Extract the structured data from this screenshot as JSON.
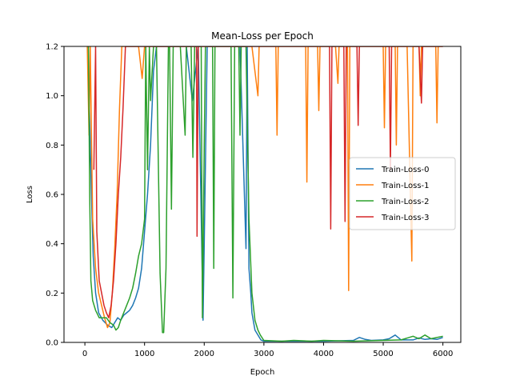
{
  "chart_data": {
    "type": "line",
    "title": "Mean-Loss per Epoch",
    "xlabel": "Epoch",
    "ylabel": "Loss",
    "xlim": [
      -350,
      6300
    ],
    "ylim": [
      0,
      1.2
    ],
    "xticks": [
      0,
      1000,
      2000,
      3000,
      4000,
      5000,
      6000
    ],
    "yticks": [
      0.0,
      0.2,
      0.4,
      0.6,
      0.8,
      1.0,
      1.2
    ],
    "xtick_labels": [
      "0",
      "1000",
      "2000",
      "3000",
      "4000",
      "5000",
      "6000"
    ],
    "ytick_labels": [
      "0.0",
      "0.2",
      "0.4",
      "0.6",
      "0.8",
      "1.0",
      "1.2"
    ],
    "grid": false,
    "legend_position": "center-right",
    "series": [
      {
        "name": "Train-Loss-0",
        "color": "#1f77b4",
        "points": [
          [
            50,
            1.2
          ],
          [
            80,
            0.9
          ],
          [
            110,
            0.6
          ],
          [
            140,
            0.35
          ],
          [
            180,
            0.2
          ],
          [
            230,
            0.12
          ],
          [
            300,
            0.09
          ],
          [
            380,
            0.07
          ],
          [
            450,
            0.06
          ],
          [
            500,
            0.08
          ],
          [
            550,
            0.1
          ],
          [
            600,
            0.09
          ],
          [
            650,
            0.11
          ],
          [
            700,
            0.12
          ],
          [
            750,
            0.13
          ],
          [
            800,
            0.15
          ],
          [
            850,
            0.18
          ],
          [
            900,
            0.22
          ],
          [
            950,
            0.3
          ],
          [
            1000,
            0.45
          ],
          [
            1050,
            0.6
          ],
          [
            1100,
            0.8
          ],
          [
            1150,
            1.1
          ],
          [
            1200,
            1.2
          ],
          [
            1300,
            1.2
          ],
          [
            1500,
            1.2
          ],
          [
            1700,
            1.2
          ],
          [
            1800,
            0.98
          ],
          [
            1900,
            1.2
          ],
          [
            1980,
            0.09
          ],
          [
            2000,
            0.4
          ],
          [
            2050,
            1.2
          ],
          [
            2200,
            1.2
          ],
          [
            2400,
            1.2
          ],
          [
            2600,
            1.2
          ],
          [
            2700,
            0.38
          ],
          [
            2720,
            1.2
          ],
          [
            2750,
            0.3
          ],
          [
            2780,
            0.2
          ],
          [
            2800,
            0.12
          ],
          [
            2850,
            0.05
          ],
          [
            2900,
            0.03
          ],
          [
            2950,
            0.01
          ],
          [
            3000,
            0.005
          ],
          [
            3500,
            0.005
          ],
          [
            4000,
            0.005
          ],
          [
            4500,
            0.008
          ],
          [
            4600,
            0.02
          ],
          [
            4700,
            0.012
          ],
          [
            4800,
            0.008
          ],
          [
            5000,
            0.01
          ],
          [
            5100,
            0.015
          ],
          [
            5200,
            0.03
          ],
          [
            5300,
            0.01
          ],
          [
            5500,
            0.01
          ],
          [
            5600,
            0.018
          ],
          [
            5700,
            0.012
          ],
          [
            5800,
            0.015
          ],
          [
            5900,
            0.012
          ],
          [
            6000,
            0.02
          ]
        ]
      },
      {
        "name": "Train-Loss-1",
        "color": "#ff7f0e",
        "points": [
          [
            40,
            1.2
          ],
          [
            70,
            0.84
          ],
          [
            90,
            1.2
          ],
          [
            130,
            0.5
          ],
          [
            180,
            0.3
          ],
          [
            230,
            0.2
          ],
          [
            280,
            0.15
          ],
          [
            330,
            0.1
          ],
          [
            380,
            0.06
          ],
          [
            420,
            0.08
          ],
          [
            460,
            0.2
          ],
          [
            500,
            0.38
          ],
          [
            540,
            0.6
          ],
          [
            580,
            0.95
          ],
          [
            620,
            1.2
          ],
          [
            680,
            1.2
          ],
          [
            900,
            1.2
          ],
          [
            960,
            1.07
          ],
          [
            1000,
            1.2
          ],
          [
            1500,
            1.2
          ],
          [
            2000,
            1.2
          ],
          [
            2500,
            1.2
          ],
          [
            2800,
            1.2
          ],
          [
            2900,
            1.0
          ],
          [
            2920,
            1.2
          ],
          [
            3200,
            1.2
          ],
          [
            3220,
            0.84
          ],
          [
            3240,
            1.2
          ],
          [
            3700,
            1.2
          ],
          [
            3720,
            0.65
          ],
          [
            3740,
            1.2
          ],
          [
            3900,
            1.2
          ],
          [
            3920,
            0.94
          ],
          [
            3940,
            1.2
          ],
          [
            4200,
            1.2
          ],
          [
            4240,
            1.05
          ],
          [
            4260,
            1.2
          ],
          [
            4400,
            1.2
          ],
          [
            4420,
            0.21
          ],
          [
            4440,
            1.2
          ],
          [
            4600,
            1.2
          ],
          [
            5000,
            1.2
          ],
          [
            5020,
            0.87
          ],
          [
            5040,
            1.2
          ],
          [
            5200,
            1.2
          ],
          [
            5220,
            0.8
          ],
          [
            5240,
            1.2
          ],
          [
            5400,
            1.2
          ],
          [
            5480,
            0.33
          ],
          [
            5500,
            1.2
          ],
          [
            5600,
            1.2
          ],
          [
            5620,
            1.0
          ],
          [
            5640,
            1.2
          ],
          [
            5880,
            1.2
          ],
          [
            5900,
            0.89
          ],
          [
            5920,
            1.2
          ],
          [
            6000,
            1.2
          ]
        ]
      },
      {
        "name": "Train-Loss-2",
        "color": "#2ca02c",
        "points": [
          [
            60,
            1.2
          ],
          [
            80,
            0.6
          ],
          [
            100,
            0.25
          ],
          [
            130,
            0.17
          ],
          [
            180,
            0.13
          ],
          [
            240,
            0.1
          ],
          [
            300,
            0.1
          ],
          [
            360,
            0.1
          ],
          [
            420,
            0.08
          ],
          [
            480,
            0.07
          ],
          [
            520,
            0.05
          ],
          [
            560,
            0.06
          ],
          [
            600,
            0.09
          ],
          [
            650,
            0.12
          ],
          [
            700,
            0.15
          ],
          [
            750,
            0.18
          ],
          [
            800,
            0.22
          ],
          [
            850,
            0.28
          ],
          [
            900,
            0.35
          ],
          [
            950,
            0.4
          ],
          [
            1000,
            0.5
          ],
          [
            1020,
            1.2
          ],
          [
            1050,
            0.7
          ],
          [
            1080,
            1.2
          ],
          [
            1100,
            0.98
          ],
          [
            1150,
            1.2
          ],
          [
            1200,
            1.2
          ],
          [
            1260,
            0.28
          ],
          [
            1300,
            0.04
          ],
          [
            1320,
            0.04
          ],
          [
            1360,
            0.3
          ],
          [
            1400,
            1.2
          ],
          [
            1420,
            1.2
          ],
          [
            1450,
            0.54
          ],
          [
            1480,
            1.2
          ],
          [
            1600,
            1.2
          ],
          [
            1680,
            0.84
          ],
          [
            1700,
            1.2
          ],
          [
            1780,
            1.2
          ],
          [
            1810,
            0.75
          ],
          [
            1840,
            1.2
          ],
          [
            1950,
            1.2
          ],
          [
            1970,
            0.1
          ],
          [
            2000,
            0.8
          ],
          [
            2020,
            1.2
          ],
          [
            2140,
            1.2
          ],
          [
            2160,
            0.3
          ],
          [
            2180,
            1.2
          ],
          [
            2450,
            1.2
          ],
          [
            2480,
            0.18
          ],
          [
            2510,
            1.2
          ],
          [
            2580,
            1.2
          ],
          [
            2600,
            0.84
          ],
          [
            2620,
            1.2
          ],
          [
            2700,
            1.2
          ],
          [
            2750,
            0.5
          ],
          [
            2800,
            0.2
          ],
          [
            2850,
            0.09
          ],
          [
            2900,
            0.05
          ],
          [
            2940,
            0.03
          ],
          [
            2980,
            0.015
          ],
          [
            3000,
            0.008
          ],
          [
            3300,
            0.005
          ],
          [
            3500,
            0.008
          ],
          [
            3800,
            0.005
          ],
          [
            4000,
            0.008
          ],
          [
            4500,
            0.005
          ],
          [
            5000,
            0.008
          ],
          [
            5300,
            0.01
          ],
          [
            5500,
            0.025
          ],
          [
            5600,
            0.015
          ],
          [
            5700,
            0.03
          ],
          [
            5800,
            0.015
          ],
          [
            6000,
            0.025
          ]
        ]
      },
      {
        "name": "Train-Loss-3",
        "color": "#d62728",
        "points": [
          [
            150,
            0.7
          ],
          [
            180,
            1.2
          ],
          [
            200,
            0.45
          ],
          [
            240,
            0.25
          ],
          [
            280,
            0.2
          ],
          [
            320,
            0.15
          ],
          [
            360,
            0.12
          ],
          [
            400,
            0.1
          ],
          [
            440,
            0.15
          ],
          [
            480,
            0.25
          ],
          [
            520,
            0.4
          ],
          [
            560,
            0.6
          ],
          [
            600,
            0.75
          ],
          [
            640,
            0.95
          ],
          [
            680,
            1.2
          ],
          [
            700,
            1.2
          ],
          [
            1800,
            1.2
          ],
          [
            1870,
            1.2
          ],
          [
            1880,
            0.43
          ],
          [
            1900,
            1.2
          ],
          [
            4100,
            1.2
          ],
          [
            4120,
            0.46
          ],
          [
            4140,
            1.2
          ],
          [
            4340,
            1.2
          ],
          [
            4360,
            0.49
          ],
          [
            4380,
            1.2
          ],
          [
            4560,
            1.2
          ],
          [
            4580,
            0.88
          ],
          [
            4600,
            1.2
          ],
          [
            5100,
            1.2
          ],
          [
            5120,
            0.7
          ],
          [
            5140,
            1.2
          ],
          [
            5600,
            1.2
          ],
          [
            5640,
            0.97
          ],
          [
            5660,
            1.2
          ],
          [
            6000,
            1.2
          ]
        ]
      }
    ]
  }
}
